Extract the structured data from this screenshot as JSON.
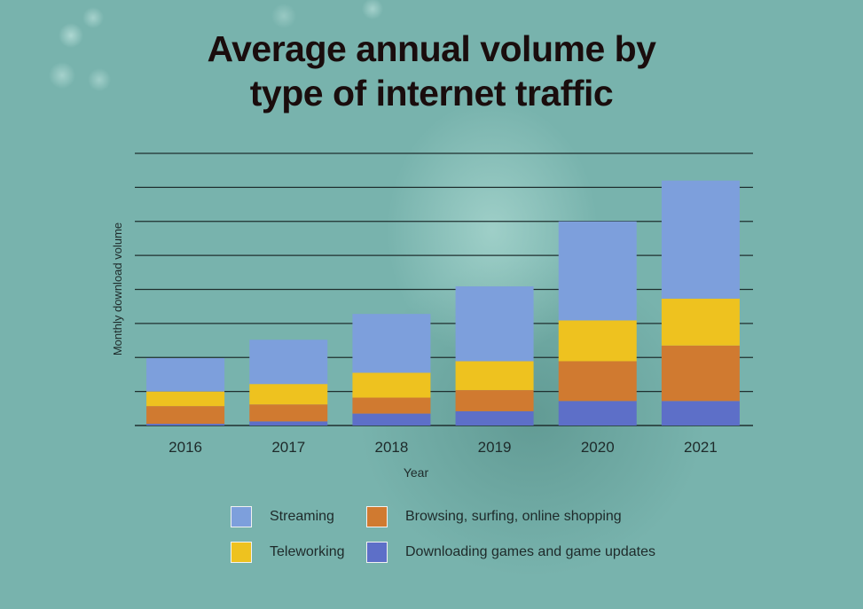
{
  "header": {
    "title_line1": "Average annual volume by",
    "title_line2": "type of internet traffic"
  },
  "chart_data": {
    "type": "bar",
    "stacked": true,
    "title": "Average annual volume by type of internet traffic",
    "xlabel": "Year",
    "ylabel": "Monthly download volume",
    "categories": [
      "2016",
      "2017",
      "2018",
      "2019",
      "2020",
      "2021"
    ],
    "ylim": [
      0,
      8
    ],
    "gridlines": 8,
    "grid": true,
    "series": [
      {
        "name": "Downloading games and game updates",
        "color": "#5d6fc8",
        "values": [
          0.05,
          0.12,
          0.35,
          0.42,
          0.72,
          0.72
        ]
      },
      {
        "name": "Browsing, surfing, online shopping",
        "color": "#d07a30",
        "values": [
          0.52,
          0.5,
          0.47,
          0.62,
          1.17,
          1.63
        ]
      },
      {
        "name": "Teleworking",
        "color": "#eec21f",
        "values": [
          0.43,
          0.6,
          0.73,
          0.85,
          1.2,
          1.38
        ]
      },
      {
        "name": "Streaming",
        "color": "#7d9fdc",
        "values": [
          0.98,
          1.3,
          1.73,
          2.2,
          2.91,
          3.47
        ]
      }
    ],
    "legend_position": "bottom"
  },
  "legend": {
    "items": [
      {
        "label": "Streaming",
        "color": "#7d9fdc"
      },
      {
        "label": "Browsing, surfing, online shopping",
        "color": "#d07a30"
      },
      {
        "label": "Teleworking",
        "color": "#eec21f"
      },
      {
        "label": "Downloading games and game updates",
        "color": "#5d6fc8"
      }
    ]
  },
  "colors": {
    "background": "#78b3ad",
    "gridline": "#1f2f2f",
    "text": "#1e2a2a"
  }
}
